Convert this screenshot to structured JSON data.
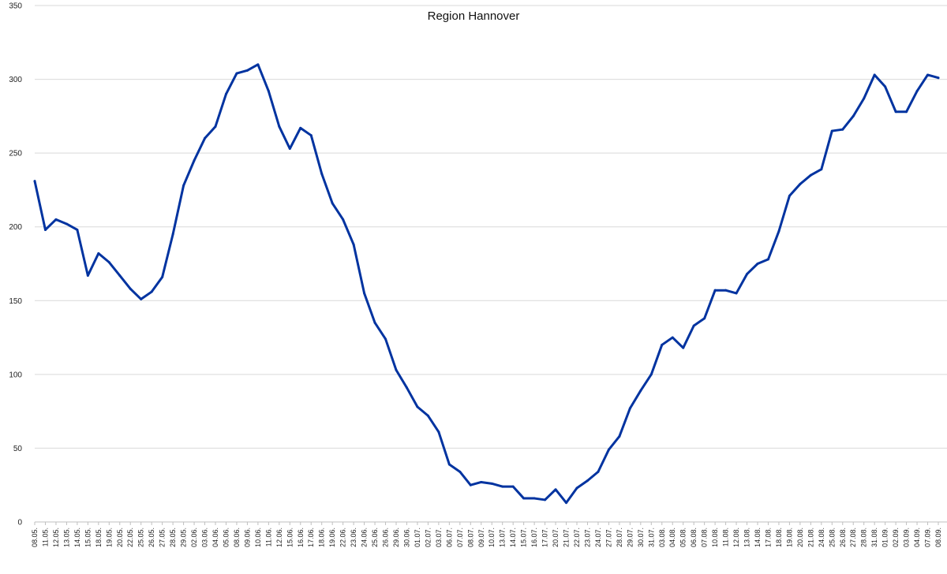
{
  "chart_data": {
    "type": "line",
    "title": "Region Hannover",
    "ylim": [
      0,
      350
    ],
    "yticks": [
      0,
      50,
      100,
      150,
      200,
      250,
      300,
      350
    ],
    "grid": true,
    "legend": "none",
    "line_color": "#0033a0",
    "categories": [
      "08.05.",
      "11.05.",
      "12.05.",
      "13.05.",
      "14.05.",
      "15.05.",
      "18.05.",
      "19.05.",
      "20.05.",
      "22.05.",
      "25.05.",
      "26.05.",
      "27.05.",
      "28.05.",
      "29.05.",
      "02.06.",
      "03.06.",
      "04.06.",
      "05.06.",
      "08.06.",
      "09.06.",
      "10.06.",
      "11.06.",
      "12.06.",
      "15.06.",
      "16.06.",
      "17.06.",
      "18.06.",
      "19.06.",
      "22.06.",
      "23.06.",
      "24.06.",
      "25.06.",
      "26.06.",
      "29.06.",
      "30.06.",
      "01.07.",
      "02.07.",
      "03.07.",
      "06.07.",
      "07.07.",
      "08.07.",
      "09.07.",
      "10.07.",
      "13.07.",
      "14.07.",
      "15.07.",
      "16.07.",
      "17.07.",
      "20.07.",
      "21.07.",
      "22.07.",
      "23.07.",
      "24.07.",
      "27.07.",
      "28.07.",
      "29.07.",
      "30.07.",
      "31.07.",
      "03.08.",
      "04.08.",
      "05.08.",
      "06.08.",
      "07.08.",
      "10.08.",
      "11.08.",
      "12.08.",
      "13.08.",
      "14.08.",
      "17.08.",
      "18.08.",
      "19.08.",
      "20.08.",
      "21.08.",
      "24.08.",
      "25.08.",
      "26.08.",
      "27.08.",
      "28.08.",
      "31.08.",
      "01.09.",
      "02.09.",
      "03.09.",
      "04.09.",
      "07.09.",
      "08.09."
    ],
    "values": [
      231,
      198,
      205,
      202,
      198,
      167,
      182,
      176,
      167,
      158,
      151,
      156,
      166,
      195,
      228,
      245,
      260,
      268,
      290,
      304,
      306,
      310,
      292,
      268,
      253,
      267,
      262,
      236,
      216,
      205,
      188,
      155,
      135,
      124,
      103,
      91,
      78,
      72,
      61,
      39,
      34,
      25,
      27,
      26,
      24,
      24,
      16,
      16,
      15,
      22,
      13,
      23,
      28,
      34,
      49,
      58,
      77,
      89,
      100,
      120,
      125,
      118,
      133,
      138,
      157,
      157,
      155,
      168,
      175,
      178,
      197,
      221,
      229,
      235,
      239,
      265,
      266,
      275,
      287,
      303,
      295,
      278,
      278,
      292,
      303,
      301
    ]
  }
}
